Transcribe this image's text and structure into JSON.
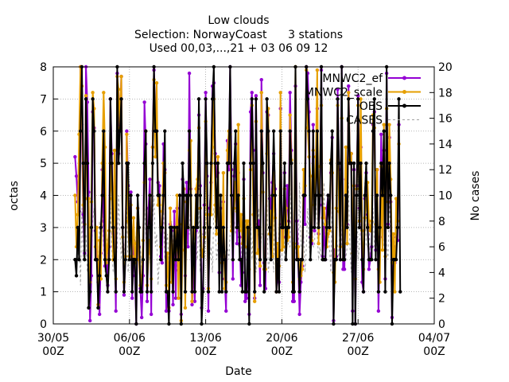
{
  "chart_data": {
    "type": "line",
    "title_lines": [
      "Low clouds",
      "Selection: NorwayCoast      3 stations",
      "Used 00,03,...,21 + 03 06 09 12"
    ],
    "xlabel": "Date",
    "ylabel": "octas",
    "y2label": "No cases",
    "xlim": [
      "2022-05-30T00",
      "2022-07-04T00"
    ],
    "ylim": [
      0,
      8
    ],
    "y2lim": [
      0,
      20
    ],
    "x_tick_labels": [
      {
        "line1": "30/05",
        "line2": "00Z"
      },
      {
        "line1": "06/06",
        "line2": "00Z"
      },
      {
        "line1": "13/06",
        "line2": "00Z"
      },
      {
        "line1": "20/06",
        "line2": "00Z"
      },
      {
        "line1": "27/06",
        "line2": "00Z"
      },
      {
        "line1": "04/07",
        "line2": "00Z"
      }
    ],
    "x_tick_days": [
      0,
      7,
      14,
      21,
      28,
      35
    ],
    "y_ticks": [
      "0",
      "1",
      "2",
      "3",
      "4",
      "5",
      "6",
      "7",
      "8"
    ],
    "y2_ticks": [
      "0",
      "2",
      "4",
      "6",
      "8",
      "10",
      "12",
      "14",
      "16",
      "18",
      "20"
    ],
    "grid": true,
    "legend_position": "top-right",
    "sampling_interval_hours": 3,
    "first_sample_day": 2,
    "series": [
      {
        "name": "MNWC2_ef",
        "color": "#9400d3",
        "axis": "left",
        "values": [
          5.2,
          4.6,
          3.8,
          3.5,
          8,
          6.2,
          3.4,
          2.2,
          8,
          6.9,
          4.1,
          0.1,
          1.5,
          6.6,
          6.1,
          2.9,
          2,
          1.3,
          0.3,
          2.2,
          4.8,
          3.2,
          1.8,
          2.2,
          1.2,
          2.4,
          7,
          5.3,
          2.8,
          3,
          0.4,
          7.8,
          5.3,
          6.4,
          7.7,
          3,
          0.9,
          2.1,
          6,
          4.3,
          2.8,
          4.1,
          0.8,
          2.6,
          1.5,
          0,
          3.6,
          2.4,
          1.1,
          0.2,
          1.5,
          6.9,
          5.6,
          0.7,
          3.6,
          4.5,
          0.3,
          5.5,
          7.9,
          6.3,
          6,
          4.4,
          4.3,
          2.1,
          1.9,
          5.6,
          4.8,
          0.4,
          0.8,
          0.4,
          3.1,
          2.9,
          0.6,
          3.5,
          0.8,
          3.6,
          2.5,
          4,
          0.3,
          4.5,
          3.8,
          1.5,
          4.4,
          2.4,
          7.8,
          4.2,
          0.6,
          1.8,
          0.7,
          2.9,
          4.2,
          6.5,
          4.3,
          0.5,
          1.1,
          3.7,
          7.2,
          4.6,
          0.4,
          3.6,
          4.4,
          7.4,
          7.5,
          5.3,
          4.6,
          4.7,
          1.6,
          3.6,
          2.1,
          3.8,
          1.4,
          0.4,
          5.7,
          4.8,
          8,
          4.8,
          1.4,
          4.6,
          5.6,
          2.5,
          4.7,
          2.7,
          1.2,
          1.6,
          4.5,
          0.7,
          0.8,
          2,
          0.3,
          6.6,
          7.2,
          5.4,
          0.8,
          7.1,
          3.1,
          3.2,
          1.2,
          7.6,
          4.7,
          1.9,
          1.1,
          6.6,
          6.5,
          3.9,
          3.6,
          4.4,
          5.3,
          4.2,
          1,
          1.6,
          1.3,
          6.7,
          3.1,
          2.7,
          4.7,
          2.7,
          4.3,
          3.2,
          7.2,
          5.4,
          0.7,
          0.7,
          7.4,
          3.2,
          2,
          0.3,
          1.3,
          1.8,
          4,
          3.1,
          8,
          7.8,
          6.6,
          2.7,
          2.5,
          6.2,
          2.9,
          4.6,
          6.7,
          2.8,
          3.7,
          7.9,
          2.1,
          3,
          2,
          3.6,
          4,
          3,
          4.7,
          5.8,
          0.1,
          2.3,
          2.1,
          7.3,
          4.8,
          2,
          8,
          1.7,
          1.7,
          4.5,
          3.1,
          7.4,
          5,
          5.3,
          0.4,
          4.8,
          0,
          4.3,
          7.1,
          3.6,
          5.5,
          1.3,
          1,
          3.9,
          4.7,
          3.4,
          1.7,
          2,
          2.4,
          6.2,
          6.6,
          2.3,
          4.8,
          0.4,
          2.7,
          5.9,
          3.9,
          5.4,
          1.4,
          7.8,
          3.1,
          5.8,
          3.8,
          0.2,
          2.4,
          1.9,
          2.7,
          2.6,
          6.2
        ]
      },
      {
        "name": "MNWC2_scale",
        "color": "#e69f00",
        "axis": "left",
        "values": [
          4,
          2.4,
          3.4,
          5.9,
          8,
          7.4,
          3.7,
          3.1,
          7.1,
          3.9,
          3.9,
          1.3,
          3.8,
          7.2,
          6.7,
          2.4,
          3,
          0.6,
          2.6,
          1.4,
          5,
          7.2,
          5.5,
          1.9,
          2.4,
          2.9,
          5,
          3.9,
          2,
          5.4,
          1.4,
          7.7,
          7.3,
          6.1,
          7.7,
          2.7,
          1.3,
          2.1,
          5.9,
          3.2,
          2.1,
          3.7,
          2.1,
          3.3,
          1.9,
          2.5,
          3.6,
          2,
          1.2,
          1.5,
          2.6,
          4.4,
          6,
          1.2,
          2.2,
          2.6,
          1.4,
          5.5,
          7.6,
          5.2,
          7.5,
          3.7,
          3.7,
          2.4,
          3.5,
          5,
          4.7,
          1.2,
          2.2,
          0.5,
          3.6,
          1.3,
          1.9,
          3,
          2.3,
          4,
          0.8,
          3.1,
          0.1,
          2.3,
          4.2,
          0.5,
          3.8,
          3,
          5.4,
          5.7,
          0.7,
          2.5,
          2.8,
          4.2,
          4.5,
          6.1,
          3.6,
          2.3,
          2.1,
          2.7,
          6.3,
          3.4,
          1.1,
          3.4,
          3.4,
          5.5,
          7,
          3.7,
          2.8,
          5.2,
          2.5,
          2.3,
          1.9,
          4.7,
          1.1,
          1.3,
          5.4,
          6,
          5.9,
          2.9,
          3.5,
          3.6,
          4.4,
          3.5,
          6.2,
          2.9,
          3.4,
          2.5,
          3.9,
          2.4,
          3.2,
          3.2,
          1.7,
          4.8,
          6.8,
          3.4,
          0.7,
          6.3,
          2.2,
          2.3,
          1.8,
          7.2,
          4.1,
          1.7,
          1.7,
          5.3,
          6.7,
          2.8,
          3.5,
          2.1,
          4.7,
          3.3,
          1,
          2.5,
          1.8,
          7.2,
          2.3,
          2.4,
          4.2,
          3.6,
          2.6,
          2.7,
          6.5,
          5.1,
          1.3,
          2.5,
          8,
          2.4,
          2.4,
          1.4,
          1.5,
          1.7,
          4.8,
          4.3,
          7.9,
          6.1,
          5.2,
          4.6,
          2.6,
          5.4,
          3.7,
          5.2,
          7.9,
          2.5,
          4.9,
          6.8,
          3.3,
          3.6,
          3.1,
          2.4,
          2.8,
          2.9,
          5.1,
          4.7,
          1.6,
          1.3,
          3.6,
          6.8,
          3.5,
          2.4,
          6.4,
          2,
          3,
          5.5,
          2.5,
          7.2,
          5.1,
          5.3,
          2.2,
          4.3,
          1.4,
          4.2,
          6.8,
          3.2,
          7,
          2.9,
          1.7,
          3.3,
          3.8,
          4.4,
          3.2,
          2.9,
          3.2,
          6.5,
          6.1,
          3.1,
          4.8,
          1.7,
          1.3,
          4.9,
          2.3,
          6.2,
          2.1,
          6.7,
          3.8,
          6.2,
          4.5,
          1.9,
          2.8,
          1,
          3.9,
          3.2,
          5.6
        ]
      },
      {
        "name": "OBS",
        "color": "#000000",
        "axis": "left",
        "values": [
          2,
          1.5,
          3,
          2,
          6,
          8,
          5,
          2,
          7,
          5,
          0.5,
          1,
          3,
          7,
          6,
          2,
          2,
          0.5,
          1.5,
          3,
          4,
          6,
          2,
          1.5,
          1,
          2,
          7,
          5,
          3,
          2,
          1,
          8,
          5,
          6,
          7,
          3,
          1,
          2,
          5,
          5,
          2,
          4,
          1,
          2,
          2,
          0,
          4,
          3,
          1,
          1,
          2,
          5,
          6,
          1,
          3,
          4,
          1,
          5,
          8,
          6,
          6,
          4,
          4,
          2,
          3,
          4,
          6,
          1,
          1,
          0,
          3,
          3,
          1,
          3,
          2,
          3,
          2,
          4,
          0,
          5,
          4,
          1,
          4,
          3,
          6,
          4,
          1,
          3,
          1,
          4,
          3,
          7,
          4,
          0,
          1,
          3,
          7,
          5,
          1,
          3,
          5,
          7,
          8,
          5,
          3,
          5,
          1,
          4,
          1,
          3,
          2,
          1,
          5,
          5,
          8,
          4,
          2,
          5,
          6,
          3,
          4,
          2,
          2,
          1,
          5,
          1,
          1,
          3,
          0,
          5,
          7,
          5,
          1,
          7,
          3,
          3,
          2,
          6,
          5,
          1,
          2,
          7,
          6,
          3,
          2,
          4,
          6,
          4,
          1,
          2,
          1,
          6,
          3,
          3,
          5,
          2,
          3,
          3,
          6,
          5,
          1,
          1,
          8,
          2,
          2,
          1,
          2,
          2,
          4,
          4,
          8,
          7,
          6,
          2,
          3,
          6,
          3,
          4,
          6,
          3,
          4,
          8,
          2,
          2,
          2,
          3,
          4,
          3,
          5,
          6,
          0,
          2,
          2,
          7,
          5,
          2,
          8,
          2,
          2,
          4,
          3,
          7,
          5,
          5,
          0,
          5,
          0,
          4,
          7,
          3,
          5,
          2,
          1,
          4,
          5,
          3,
          2,
          2,
          2,
          6,
          7,
          2,
          4,
          1,
          3,
          5,
          4,
          6,
          1,
          8,
          3,
          5,
          4,
          0,
          2,
          2,
          2,
          3,
          7,
          1
        ]
      },
      {
        "name": "CASES",
        "color": "#a0a0a0",
        "axis": "right",
        "values": [
          6,
          6,
          5,
          7,
          3,
          9,
          5,
          7,
          7,
          4,
          6,
          6,
          5,
          8,
          9,
          6,
          7,
          4,
          8,
          5,
          9,
          6,
          4,
          7,
          6,
          5,
          9,
          6,
          4,
          4,
          5,
          6,
          10,
          7,
          5,
          7,
          6,
          5,
          9,
          4,
          7,
          8,
          6,
          5,
          6,
          7,
          10,
          6,
          6,
          4,
          6,
          9,
          7,
          5,
          7,
          5,
          4,
          8,
          10,
          6,
          7,
          3,
          5,
          5,
          7,
          9,
          5,
          6,
          7,
          4,
          6,
          8,
          6,
          5,
          7,
          4,
          4,
          9,
          5,
          7,
          7,
          4,
          6,
          7,
          7,
          9,
          5,
          7,
          6,
          6,
          5,
          9,
          4,
          7,
          7,
          5,
          7,
          11,
          6,
          5,
          6,
          4,
          9,
          8,
          5,
          6,
          6,
          6,
          4,
          10,
          5,
          6,
          6,
          5,
          7,
          9,
          5,
          8,
          7,
          7,
          6,
          7,
          5,
          8,
          6,
          5,
          6,
          6,
          8,
          8,
          5,
          7,
          7,
          4,
          6,
          9,
          5,
          7,
          7,
          6,
          6,
          10,
          4,
          5,
          6,
          7,
          4,
          12,
          6,
          5,
          8,
          5,
          5,
          9,
          5,
          6,
          7,
          6,
          6,
          12,
          6,
          7,
          6,
          5,
          5,
          11,
          6,
          6,
          7,
          4,
          6,
          9,
          6,
          5,
          8,
          6,
          6,
          10,
          7,
          5,
          6,
          5,
          5,
          11,
          5,
          6,
          8,
          6,
          4,
          10,
          6,
          5,
          7,
          6,
          5,
          11,
          6,
          6,
          7,
          5,
          6,
          11,
          6,
          4,
          8,
          6,
          5,
          10,
          5,
          6,
          8,
          6,
          5,
          11,
          6,
          6,
          8,
          5,
          6,
          9,
          6,
          5,
          7,
          6,
          5,
          11,
          6,
          6,
          8,
          6,
          5,
          10,
          6,
          5,
          7,
          6,
          5,
          9
        ]
      }
    ]
  }
}
